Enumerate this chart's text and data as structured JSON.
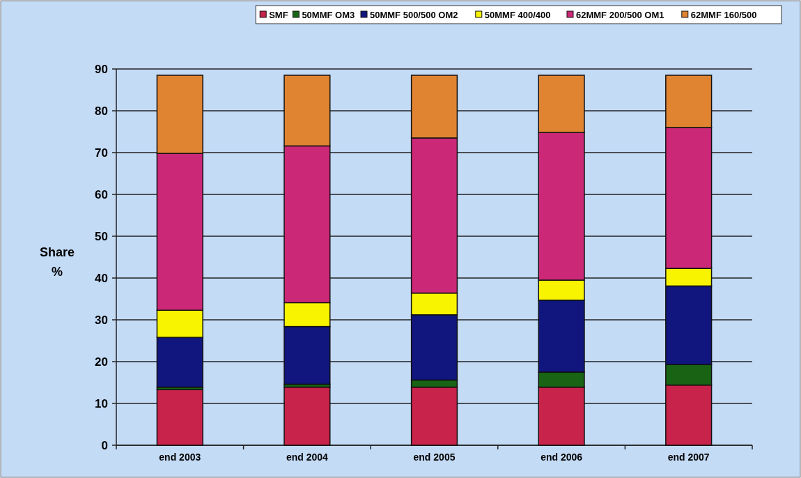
{
  "chart_data": {
    "type": "bar",
    "stacked": true,
    "ylabel": "Share %",
    "categories": [
      "end 2003",
      "end 2004",
      "end 2005",
      "end 2006",
      "end 2007"
    ],
    "series": [
      {
        "name": "SMF",
        "color": "#c8234a",
        "values": [
          13.3,
          13.9,
          13.9,
          13.9,
          14.4
        ]
      },
      {
        "name": "50MMF OM3",
        "color": "#186414",
        "values": [
          0.6,
          0.7,
          1.7,
          3.6,
          4.9
        ]
      },
      {
        "name": "50MMF 500/500 OM2",
        "color": "#10167e",
        "values": [
          11.9,
          13.8,
          15.6,
          17.2,
          18.8
        ]
      },
      {
        "name": "50MMF 400/400",
        "color": "#f8f400",
        "values": [
          6.5,
          5.7,
          5.2,
          4.8,
          4.2
        ]
      },
      {
        "name": "62MMF 200/500 OM1",
        "color": "#cc2878",
        "values": [
          37.5,
          37.5,
          37.1,
          35.3,
          33.7
        ]
      },
      {
        "name": "62MMF 160/500",
        "color": "#e08432",
        "values": [
          18.7,
          16.9,
          15.0,
          13.7,
          12.5
        ]
      }
    ],
    "ylim": [
      0,
      90
    ],
    "yticks": [
      0,
      10,
      20,
      30,
      40,
      50,
      60,
      70,
      80,
      90
    ],
    "grid": "y",
    "legend": "top"
  }
}
